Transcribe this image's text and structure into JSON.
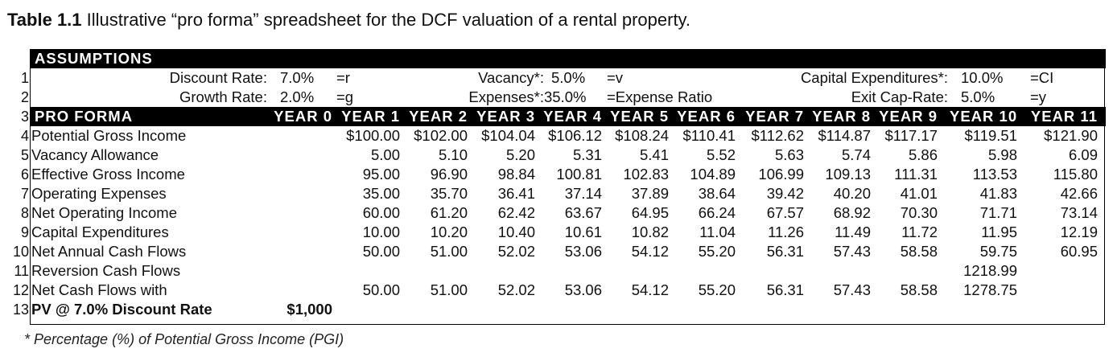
{
  "caption": {
    "label": "Table 1.1",
    "text": "Illustrative “pro forma” spreadsheet for the DCF valuation of a rental property."
  },
  "assumptions": {
    "header": "ASSUMPTIONS",
    "row1": {
      "num": "1",
      "discount_label": "Discount Rate:",
      "discount_value": "7.0%",
      "discount_sym": "=r",
      "vacancy_label": "Vacancy*:",
      "vacancy_value": "5.0%",
      "vacancy_sym": "=v",
      "capex_label": "Capital Expenditures*:",
      "capex_value": "10.0%",
      "capex_sym": "=CI"
    },
    "row2": {
      "num": "2",
      "growth_label": "Growth Rate:",
      "growth_value": "2.0%",
      "growth_sym": "=g",
      "expenses_label": "Expenses*:",
      "expenses_value": "35.0%",
      "expenses_sym": "=Expense Ratio",
      "exitcap_label": "Exit Cap-Rate:",
      "exitcap_value": "5.0%",
      "exitcap_sym": "=y"
    }
  },
  "proforma": {
    "num": "3",
    "header": "PRO FORMA",
    "years": [
      "YEAR 0",
      "YEAR 1",
      "YEAR 2",
      "YEAR 3",
      "YEAR 4",
      "YEAR 5",
      "YEAR 6",
      "YEAR 7",
      "YEAR 8",
      "YEAR 9",
      "YEAR 10",
      "YEAR 11"
    ],
    "rows": [
      {
        "num": "4",
        "label": "Potential Gross Income",
        "values": [
          "",
          "$100.00",
          "$102.00",
          "$104.04",
          "$106.12",
          "$108.24",
          "$110.41",
          "$112.62",
          "$114.87",
          "$117.17",
          "$119.51",
          "$121.90"
        ]
      },
      {
        "num": "5",
        "label": "Vacancy Allowance",
        "values": [
          "",
          "5.00",
          "5.10",
          "5.20",
          "5.31",
          "5.41",
          "5.52",
          "5.63",
          "5.74",
          "5.86",
          "5.98",
          "6.09"
        ]
      },
      {
        "num": "6",
        "label": "Effective Gross Income",
        "values": [
          "",
          "95.00",
          "96.90",
          "98.84",
          "100.81",
          "102.83",
          "104.89",
          "106.99",
          "109.13",
          "111.31",
          "113.53",
          "115.80"
        ]
      },
      {
        "num": "7",
        "label": "Operating Expenses",
        "values": [
          "",
          "35.00",
          "35.70",
          "36.41",
          "37.14",
          "37.89",
          "38.64",
          "39.42",
          "40.20",
          "41.01",
          "41.83",
          "42.66"
        ]
      },
      {
        "num": "8",
        "label": "Net Operating Income",
        "values": [
          "",
          "60.00",
          "61.20",
          "62.42",
          "63.67",
          "64.95",
          "66.24",
          "67.57",
          "68.92",
          "70.30",
          "71.71",
          "73.14"
        ]
      },
      {
        "num": "9",
        "label": "Capital Expenditures",
        "values": [
          "",
          "10.00",
          "10.20",
          "10.40",
          "10.61",
          "10.82",
          "11.04",
          "11.26",
          "11.49",
          "11.72",
          "11.95",
          "12.19"
        ]
      },
      {
        "num": "10",
        "label": "Net Annual Cash Flows",
        "values": [
          "",
          "50.00",
          "51.00",
          "52.02",
          "53.06",
          "54.12",
          "55.20",
          "56.31",
          "57.43",
          "58.58",
          "59.75",
          "60.95"
        ]
      },
      {
        "num": "11",
        "label": "Reversion Cash Flows",
        "values": [
          "",
          "",
          "",
          "",
          "",
          "",
          "",
          "",
          "",
          "",
          "1218.99",
          ""
        ]
      },
      {
        "num": "12",
        "label": "Net Cash Flows with",
        "values": [
          "",
          "50.00",
          "51.00",
          "52.02",
          "53.06",
          "54.12",
          "55.20",
          "56.31",
          "57.43",
          "58.58",
          "1278.75",
          ""
        ]
      },
      {
        "num": "13",
        "label": "PV @ 7.0% Discount Rate",
        "values": [
          "$1,000",
          "",
          "",
          "",
          "",
          "",
          "",
          "",
          "",
          "",
          "",
          ""
        ],
        "bold": true
      }
    ]
  },
  "footnote": "* Percentage (%) of Potential Gross Income (PGI)"
}
